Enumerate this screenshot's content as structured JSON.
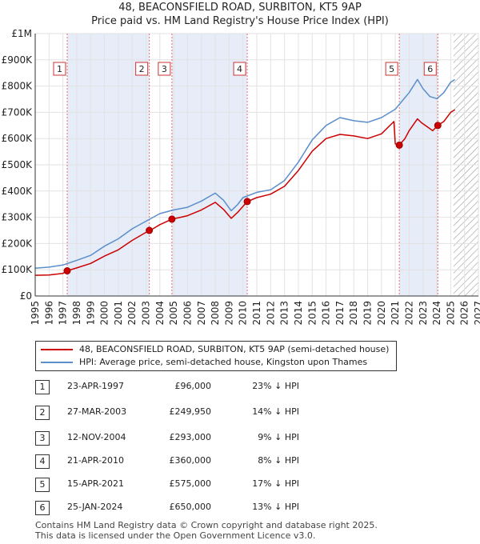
{
  "title_line1": "48, BEACONSFIELD ROAD, SURBITON, KT5 9AP",
  "title_line2": "Price paid vs. HM Land Registry's House Price Index (HPI)",
  "chart_data": {
    "type": "line",
    "title": "48, BEACONSFIELD ROAD, SURBITON, KT5 9AP",
    "subtitle": "Price paid vs. HM Land Registry's House Price Index (HPI)",
    "xlim": [
      1995,
      2027
    ],
    "ylim": [
      0,
      1000000
    ],
    "x_ticks": [
      1995,
      1996,
      1997,
      1998,
      1999,
      2000,
      2001,
      2002,
      2003,
      2004,
      2005,
      2006,
      2007,
      2008,
      2009,
      2010,
      2011,
      2012,
      2013,
      2014,
      2015,
      2016,
      2017,
      2018,
      2019,
      2020,
      2021,
      2022,
      2023,
      2024,
      2025,
      2026,
      2027
    ],
    "y_ticks": [
      {
        "value": 0,
        "label": "£0"
      },
      {
        "value": 100000,
        "label": "£100K"
      },
      {
        "value": 200000,
        "label": "£200K"
      },
      {
        "value": 300000,
        "label": "£300K"
      },
      {
        "value": 400000,
        "label": "£400K"
      },
      {
        "value": 500000,
        "label": "£500K"
      },
      {
        "value": 600000,
        "label": "£600K"
      },
      {
        "value": 700000,
        "label": "£700K"
      },
      {
        "value": 800000,
        "label": "£800K"
      },
      {
        "value": 900000,
        "label": "£900K"
      },
      {
        "value": 1000000,
        "label": "£1M"
      }
    ],
    "hatch_from": 2025.2,
    "series": [
      {
        "name": "48, BEACONSFIELD ROAD, SURBITON, KT5 9AP (semi-detached house)",
        "color": "#cc0000",
        "points": [
          [
            1995.0,
            79000
          ],
          [
            1996.0,
            80000
          ],
          [
            1997.0,
            86000
          ],
          [
            1997.31,
            96000
          ],
          [
            1998.0,
            107000
          ],
          [
            1999.0,
            124000
          ],
          [
            2000.0,
            152000
          ],
          [
            2001.0,
            176000
          ],
          [
            2002.0,
            212000
          ],
          [
            2003.24,
            249950
          ],
          [
            2003.5,
            256000
          ],
          [
            2004.0,
            272000
          ],
          [
            2004.87,
            293000
          ],
          [
            2005.5,
            300000
          ],
          [
            2006.0,
            306000
          ],
          [
            2007.0,
            328000
          ],
          [
            2008.0,
            357000
          ],
          [
            2008.6,
            330000
          ],
          [
            2009.15,
            296000
          ],
          [
            2009.6,
            318000
          ],
          [
            2010.31,
            360000
          ],
          [
            2011.0,
            375000
          ],
          [
            2012.0,
            388000
          ],
          [
            2013.0,
            418000
          ],
          [
            2014.0,
            478000
          ],
          [
            2015.0,
            552000
          ],
          [
            2016.0,
            600000
          ],
          [
            2017.0,
            616000
          ],
          [
            2018.0,
            610000
          ],
          [
            2019.0,
            600000
          ],
          [
            2020.0,
            618000
          ],
          [
            2020.9,
            665000
          ],
          [
            2021.0,
            580000
          ],
          [
            2021.29,
            575000
          ],
          [
            2021.7,
            600000
          ],
          [
            2022.0,
            630000
          ],
          [
            2022.6,
            675000
          ],
          [
            2022.9,
            660000
          ],
          [
            2023.3,
            645000
          ],
          [
            2023.7,
            630000
          ],
          [
            2024.07,
            650000
          ],
          [
            2024.5,
            665000
          ],
          [
            2025.0,
            700000
          ],
          [
            2025.3,
            710000
          ]
        ]
      },
      {
        "name": "HPI: Average price, semi-detached house, Kingston upon Thames",
        "color": "#5b8ecb",
        "points": [
          [
            1995.0,
            106000
          ],
          [
            1996.0,
            110000
          ],
          [
            1997.0,
            118000
          ],
          [
            1998.0,
            136000
          ],
          [
            1999.0,
            155000
          ],
          [
            2000.0,
            190000
          ],
          [
            2001.0,
            218000
          ],
          [
            2002.0,
            256000
          ],
          [
            2003.0,
            285000
          ],
          [
            2004.0,
            314000
          ],
          [
            2005.0,
            328000
          ],
          [
            2006.0,
            338000
          ],
          [
            2007.0,
            362000
          ],
          [
            2008.0,
            392000
          ],
          [
            2008.6,
            365000
          ],
          [
            2009.15,
            325000
          ],
          [
            2009.6,
            348000
          ],
          [
            2010.0,
            375000
          ],
          [
            2011.0,
            395000
          ],
          [
            2012.0,
            405000
          ],
          [
            2013.0,
            440000
          ],
          [
            2014.0,
            510000
          ],
          [
            2015.0,
            595000
          ],
          [
            2016.0,
            650000
          ],
          [
            2017.0,
            680000
          ],
          [
            2018.0,
            668000
          ],
          [
            2019.0,
            662000
          ],
          [
            2020.0,
            680000
          ],
          [
            2021.0,
            712000
          ],
          [
            2022.0,
            775000
          ],
          [
            2022.6,
            825000
          ],
          [
            2023.0,
            790000
          ],
          [
            2023.5,
            760000
          ],
          [
            2024.0,
            752000
          ],
          [
            2024.5,
            775000
          ],
          [
            2025.0,
            815000
          ],
          [
            2025.3,
            825000
          ]
        ]
      }
    ],
    "transactions": [
      {
        "id": "1",
        "date": "23-APR-1997",
        "price": "£96,000",
        "hpi": "23% ↓ HPI",
        "x": 1997.31,
        "y": 96000
      },
      {
        "id": "2",
        "date": "27-MAR-2003",
        "price": "£249,950",
        "hpi": "14% ↓ HPI",
        "x": 2003.24,
        "y": 249950
      },
      {
        "id": "3",
        "date": "12-NOV-2004",
        "price": "£293,000",
        "hpi": "9% ↓ HPI",
        "x": 2004.87,
        "y": 293000
      },
      {
        "id": "4",
        "date": "21-APR-2010",
        "price": "£360,000",
        "hpi": "8% ↓ HPI",
        "x": 2010.31,
        "y": 360000
      },
      {
        "id": "5",
        "date": "15-APR-2021",
        "price": "£575,000",
        "hpi": "17% ↓ HPI",
        "x": 2021.29,
        "y": 575000
      },
      {
        "id": "6",
        "date": "25-JAN-2024",
        "price": "£650,000",
        "hpi": "13% ↓ HPI",
        "x": 2024.07,
        "y": 650000
      }
    ],
    "shaded_spans": [
      [
        1997.31,
        2003.24
      ],
      [
        2004.87,
        2010.31
      ],
      [
        2021.29,
        2024.07
      ]
    ]
  },
  "legend": {
    "property_label": "48, BEACONSFIELD ROAD, SURBITON, KT5 9AP (semi-detached house)",
    "hpi_label": "HPI: Average price, semi-detached house, Kingston upon Thames",
    "property_color": "#cc0000",
    "hpi_color": "#5b8ecb"
  },
  "footer": {
    "line1": "Contains HM Land Registry data © Crown copyright and database right 2025.",
    "line2": "This data is licensed under the Open Government Licence v3.0."
  }
}
